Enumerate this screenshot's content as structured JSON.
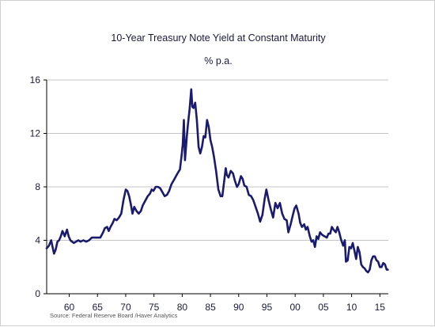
{
  "chart_data": {
    "type": "line",
    "title": "10-Year Treasury Note Yield at Constant Maturity",
    "subtitle": "% p.a.",
    "source": "Source:  Federal Reserve Board /Haver Analytics",
    "xlim": [
      1956,
      2016.5
    ],
    "ylim": [
      0,
      16
    ],
    "y_ticks": [
      0,
      4,
      8,
      12,
      16
    ],
    "y_tick_labels": [
      "0",
      "4",
      "8",
      "12",
      "16"
    ],
    "x_ticks": [
      1960,
      1965,
      1970,
      1975,
      1980,
      1985,
      1990,
      1995,
      2000,
      2005,
      2010,
      2015
    ],
    "x_tick_labels": [
      "60",
      "65",
      "70",
      "75",
      "80",
      "85",
      "90",
      "95",
      "00",
      "05",
      "10",
      "15"
    ],
    "grid": true,
    "series_color": "#1a1a6e",
    "series": [
      {
        "x": [
          1956.0,
          1956.4,
          1956.8,
          1957.0,
          1957.3,
          1957.6,
          1957.9,
          1958.2,
          1958.5,
          1958.8,
          1959.2,
          1959.6,
          1959.9,
          1960.2,
          1960.5,
          1960.8,
          1961.2,
          1961.6,
          1962.0,
          1962.5,
          1963.0,
          1963.5,
          1964.0,
          1964.5,
          1965.0,
          1965.5,
          1966.0,
          1966.3,
          1966.7,
          1967.0,
          1967.3,
          1967.7,
          1968.0,
          1968.4,
          1968.8,
          1969.2,
          1969.6,
          1970.0,
          1970.3,
          1970.6,
          1970.9,
          1971.2,
          1971.5,
          1971.9,
          1972.3,
          1972.7,
          1973.0,
          1973.5,
          1973.9,
          1974.3,
          1974.6,
          1974.9,
          1975.3,
          1975.7,
          1976.1,
          1976.5,
          1976.9,
          1977.3,
          1977.7,
          1978.1,
          1978.5,
          1978.9,
          1979.3,
          1979.6,
          1979.9,
          1980.1,
          1980.3,
          1980.5,
          1980.8,
          1981.0,
          1981.3,
          1981.6,
          1981.8,
          1982.0,
          1982.3,
          1982.6,
          1982.9,
          1983.2,
          1983.5,
          1983.8,
          1984.1,
          1984.4,
          1984.7,
          1985.0,
          1985.3,
          1985.6,
          1986.0,
          1986.4,
          1986.8,
          1987.1,
          1987.4,
          1987.7,
          1987.9,
          1988.2,
          1988.6,
          1989.0,
          1989.3,
          1989.7,
          1990.0,
          1990.4,
          1990.7,
          1991.0,
          1991.4,
          1991.8,
          1992.2,
          1992.6,
          1993.0,
          1993.4,
          1993.8,
          1994.2,
          1994.6,
          1994.9,
          1995.3,
          1995.7,
          1996.1,
          1996.5,
          1996.9,
          1997.3,
          1997.7,
          1998.1,
          1998.5,
          1998.8,
          1999.2,
          1999.6,
          1999.9,
          2000.2,
          2000.6,
          2000.9,
          2001.2,
          2001.6,
          2001.9,
          2002.2,
          2002.6,
          2002.9,
          2003.2,
          2003.5,
          2003.8,
          2004.1,
          2004.4,
          2004.8,
          2005.2,
          2005.6,
          2005.9,
          2006.2,
          2006.5,
          2006.8,
          2007.2,
          2007.5,
          2007.8,
          2008.1,
          2008.5,
          2008.8,
          2009.0,
          2009.3,
          2009.6,
          2009.9,
          2010.2,
          2010.5,
          2010.8,
          2011.1,
          2011.4,
          2011.7,
          2012.0,
          2012.3,
          2012.6,
          2012.9,
          2013.2,
          2013.5,
          2013.8,
          2014.1,
          2014.4,
          2014.7,
          2015.0,
          2015.3,
          2015.6,
          2015.9,
          2016.2,
          2016.4
        ],
        "y": [
          3.4,
          3.6,
          4.0,
          3.6,
          3.0,
          3.3,
          3.9,
          4.0,
          4.3,
          4.7,
          4.3,
          4.8,
          4.3,
          4.0,
          3.9,
          3.8,
          3.9,
          4.0,
          3.9,
          4.0,
          3.9,
          4.0,
          4.2,
          4.2,
          4.2,
          4.2,
          4.6,
          4.9,
          5.0,
          4.7,
          5.0,
          5.3,
          5.6,
          5.5,
          5.7,
          6.0,
          7.0,
          7.8,
          7.7,
          7.3,
          6.7,
          6.0,
          6.5,
          6.2,
          6.0,
          6.2,
          6.6,
          7.0,
          7.3,
          7.5,
          7.8,
          7.7,
          8.0,
          8.0,
          7.9,
          7.6,
          7.3,
          7.4,
          7.7,
          8.2,
          8.5,
          8.8,
          9.1,
          9.3,
          10.4,
          11.2,
          13.0,
          10.0,
          11.7,
          12.6,
          13.8,
          15.3,
          14.0,
          13.9,
          14.3,
          13.0,
          11.0,
          10.5,
          11.0,
          11.8,
          11.7,
          13.0,
          12.5,
          11.5,
          11.0,
          10.3,
          9.2,
          7.8,
          7.3,
          7.3,
          8.3,
          9.4,
          8.9,
          8.7,
          9.2,
          9.0,
          8.5,
          8.0,
          8.2,
          8.8,
          8.6,
          8.1,
          8.0,
          7.4,
          7.3,
          7.0,
          6.5,
          6.0,
          5.4,
          5.9,
          7.1,
          7.8,
          7.0,
          6.3,
          5.7,
          6.8,
          6.4,
          6.8,
          6.0,
          5.6,
          5.5,
          4.6,
          5.2,
          5.9,
          6.4,
          6.6,
          6.0,
          5.3,
          5.0,
          5.2,
          4.8,
          5.0,
          4.3,
          3.9,
          4.0,
          3.5,
          4.3,
          4.1,
          4.6,
          4.4,
          4.3,
          4.2,
          4.5,
          4.5,
          5.0,
          4.8,
          4.6,
          5.0,
          4.6,
          4.1,
          3.6,
          4.0,
          2.4,
          2.5,
          3.5,
          3.4,
          3.8,
          3.2,
          2.6,
          3.5,
          3.1,
          2.2,
          2.0,
          1.9,
          1.7,
          1.6,
          1.8,
          2.5,
          2.8,
          2.8,
          2.5,
          2.4,
          2.0,
          2.0,
          2.3,
          2.2,
          1.8,
          1.8
        ]
      }
    ]
  }
}
